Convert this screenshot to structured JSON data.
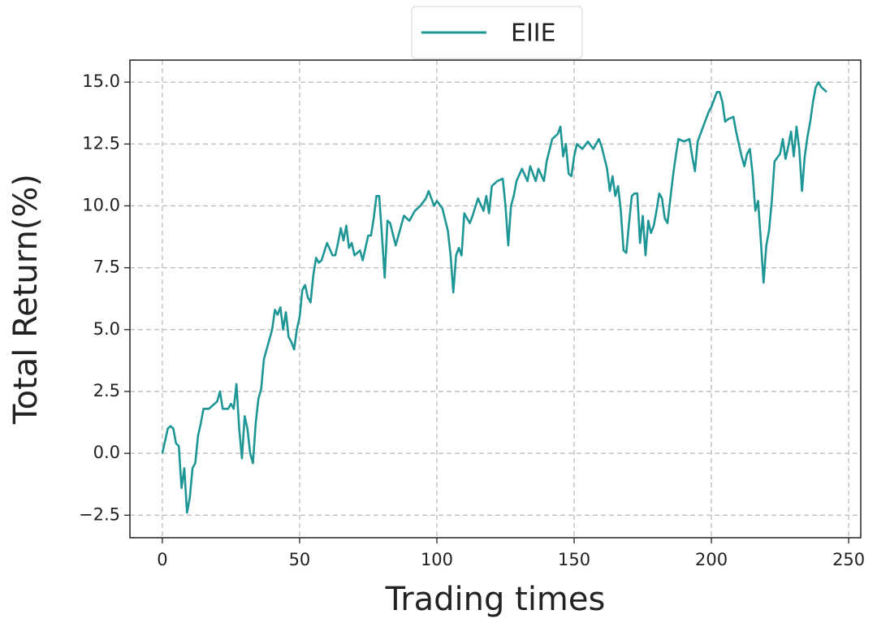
{
  "chart_data": {
    "type": "line",
    "xlabel": "Trading times",
    "ylabel": "Total Return(%)",
    "x": [
      0,
      1,
      2,
      3,
      4,
      5,
      6,
      7,
      8,
      9,
      10,
      11,
      12,
      13,
      14,
      15,
      17,
      19,
      20,
      21,
      22,
      24,
      25,
      26,
      27,
      28,
      29,
      30,
      31,
      32,
      33,
      34,
      35,
      36,
      37,
      38,
      40,
      41,
      42,
      43,
      44,
      45,
      46,
      47,
      48,
      49,
      50,
      51,
      52,
      53,
      54,
      55,
      56,
      57,
      58,
      60,
      62,
      63,
      64,
      65,
      66,
      67,
      68,
      69,
      70,
      72,
      73,
      75,
      76,
      77,
      78,
      79,
      80,
      81,
      82,
      83,
      85,
      87,
      88,
      90,
      92,
      94,
      96,
      97,
      98,
      99,
      100,
      102,
      104,
      105,
      106,
      107,
      108,
      109,
      110,
      112,
      113,
      115,
      117,
      118,
      119,
      120,
      122,
      124,
      125,
      126,
      127,
      128,
      129,
      131,
      133,
      134,
      136,
      137,
      139,
      140,
      142,
      144,
      145,
      146,
      147,
      148,
      149,
      150,
      151,
      153,
      155,
      157,
      159,
      160,
      162,
      163,
      164,
      165,
      166,
      167,
      168,
      169,
      170,
      171,
      172,
      173,
      174,
      175,
      176,
      177,
      178,
      179,
      180,
      181,
      182,
      183,
      184,
      186,
      187,
      188,
      190,
      192,
      193,
      194,
      195,
      197,
      199,
      200,
      202,
      203,
      204,
      205,
      206,
      208,
      209,
      210,
      211,
      212,
      213,
      214,
      215,
      216,
      217,
      218,
      219,
      220,
      221,
      222,
      223,
      225,
      226,
      227,
      228,
      229,
      230,
      231,
      232,
      233,
      234,
      235,
      236,
      237,
      238,
      239,
      240,
      242
    ],
    "series": [
      {
        "name": "EIIE",
        "color": "#1f9696",
        "values": [
          0.0,
          0.5,
          1.0,
          1.1,
          1.0,
          0.4,
          0.3,
          -1.4,
          -0.6,
          -2.4,
          -1.8,
          -0.6,
          -0.4,
          0.7,
          1.2,
          1.8,
          1.8,
          2.0,
          2.1,
          2.5,
          1.8,
          1.8,
          2.0,
          1.8,
          2.8,
          1.0,
          -0.2,
          1.5,
          1.0,
          0.0,
          -0.4,
          1.2,
          2.2,
          2.6,
          3.8,
          4.2,
          5.0,
          5.8,
          5.6,
          5.9,
          5.0,
          5.7,
          4.7,
          4.5,
          4.2,
          5.0,
          5.5,
          6.6,
          6.8,
          6.3,
          6.1,
          7.2,
          7.9,
          7.7,
          7.8,
          8.5,
          8.0,
          8.0,
          8.5,
          9.1,
          8.6,
          9.2,
          8.3,
          8.5,
          8.0,
          8.2,
          7.8,
          8.8,
          8.8,
          9.5,
          10.4,
          10.4,
          8.8,
          7.1,
          9.4,
          9.3,
          8.4,
          9.2,
          9.6,
          9.4,
          9.8,
          10.0,
          10.3,
          10.6,
          10.3,
          10.0,
          10.2,
          9.9,
          9.0,
          8.0,
          6.5,
          8.0,
          8.3,
          8.0,
          9.7,
          9.3,
          9.6,
          10.3,
          9.8,
          10.4,
          9.7,
          10.8,
          11.0,
          11.1,
          10.0,
          8.4,
          10.0,
          10.4,
          11.0,
          11.5,
          11.0,
          11.6,
          11.0,
          11.5,
          11.0,
          11.8,
          12.7,
          12.9,
          13.2,
          12.0,
          12.5,
          11.3,
          11.2,
          12.0,
          12.5,
          12.3,
          12.6,
          12.3,
          12.7,
          12.4,
          11.5,
          10.6,
          11.2,
          10.4,
          10.8,
          9.8,
          8.2,
          8.1,
          9.3,
          10.4,
          10.5,
          10.5,
          8.5,
          9.6,
          8.0,
          9.4,
          8.9,
          9.2,
          9.8,
          10.5,
          10.3,
          9.5,
          9.3,
          11.2,
          12.0,
          12.7,
          12.6,
          12.7,
          12.0,
          11.4,
          12.6,
          13.2,
          13.8,
          14.0,
          14.6,
          14.6,
          14.2,
          13.4,
          13.5,
          13.6,
          13.0,
          12.5,
          12.0,
          11.6,
          12.1,
          12.3,
          11.3,
          9.8,
          10.2,
          8.6,
          6.9,
          8.4,
          9.0,
          10.2,
          11.8,
          12.1,
          12.7,
          11.9,
          12.4,
          13.0,
          12.0,
          13.2,
          12.3,
          10.6,
          12.0,
          12.8,
          13.4,
          14.2,
          14.8,
          15.0,
          14.8,
          14.6
        ]
      }
    ],
    "xlim": [
      -11.8,
      254.4
    ],
    "ylim": [
      -3.41,
      15.89
    ],
    "xticks": [
      0,
      50,
      100,
      150,
      200,
      250
    ],
    "yticks": [
      {
        "value": -2.5,
        "label": "−2.5"
      },
      {
        "value": 0,
        "label": "0.0"
      },
      2.5,
      {
        "value": 5,
        "label": "5.0"
      },
      7.5,
      {
        "value": 10,
        "label": "10.0"
      },
      12.5,
      {
        "value": 15,
        "label": "15.0"
      }
    ],
    "grid": true,
    "legend": "top"
  }
}
